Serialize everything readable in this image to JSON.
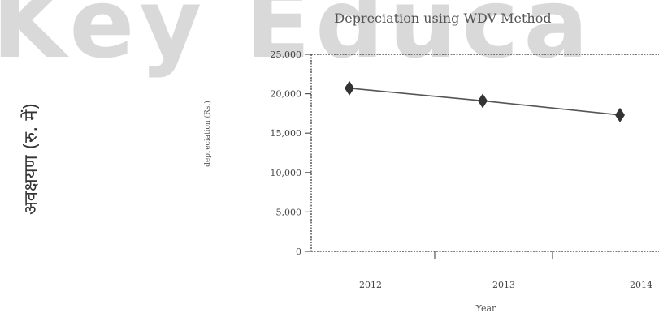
{
  "watermark": "Key Educa",
  "side_label": "अवक्षयण (रु. में)",
  "chart_data": {
    "type": "line",
    "title": "Depreciation using WDV Method",
    "xlabel": "Year",
    "ylabel": "depreciation (Rs.)",
    "categories": [
      "2012",
      "2013",
      "2014"
    ],
    "series": [
      {
        "values": [
          20700,
          19100,
          17300
        ]
      }
    ],
    "ylim": [
      0,
      25000
    ],
    "yticks": [
      0,
      5000,
      10000,
      15000,
      20000,
      25000
    ],
    "ytick_labels": [
      "0",
      "5,000",
      "10,000",
      "15,000",
      "20,000",
      "25,000"
    ],
    "grid": false,
    "line_color": "#555555",
    "marker": "diamond"
  }
}
